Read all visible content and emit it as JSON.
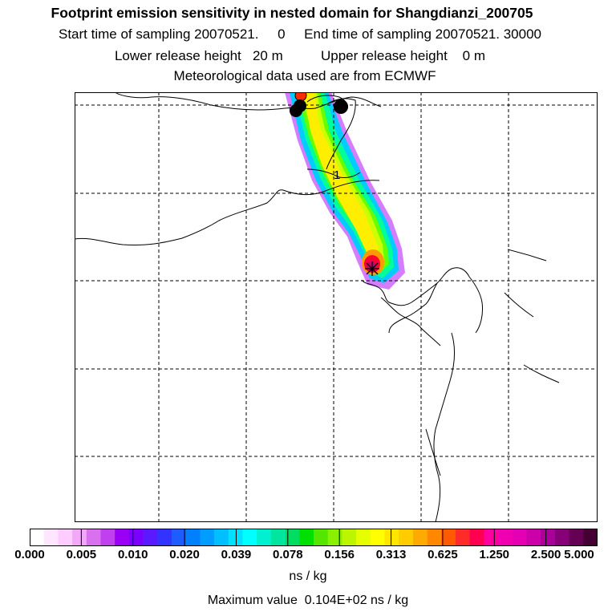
{
  "header": {
    "title": "Footprint emission sensitivity in nested domain for Shangdianzi_200705",
    "sampling_line": "Start time of sampling 20070521.     0     End time of sampling 20070521. 30000",
    "height_line": "Lower release height   20 m          Upper release height    0 m",
    "met_line": "Meteorological data used are from ECMWF"
  },
  "map": {
    "contour_label": "1",
    "plume_colors": [
      "#cc66ff",
      "#00ccff",
      "#00ff99",
      "#66ff00",
      "#ccff00",
      "#ffee00",
      "#ff9900",
      "#ff0033",
      "#cc0066"
    ]
  },
  "colorbar": {
    "colors": [
      "#ffffff",
      "#ffe6ff",
      "#ffccff",
      "#f0a8f7",
      "#d970ee",
      "#c040f0",
      "#9a00f5",
      "#7a00ff",
      "#5a1aff",
      "#3333ff",
      "#1f5cff",
      "#0080ff",
      "#009cff",
      "#00bfff",
      "#00e0ff",
      "#00ffff",
      "#00f0d0",
      "#00e6a0",
      "#00dd60",
      "#00e000",
      "#55e600",
      "#88f000",
      "#bbf500",
      "#e6ff00",
      "#ffff00",
      "#ffe600",
      "#ffcc00",
      "#ffaa00",
      "#ff8800",
      "#ff5a00",
      "#ff2a2a",
      "#ff0050",
      "#ff00a0",
      "#f000b0",
      "#e600b4",
      "#cc00a8",
      "#aa0099",
      "#880077",
      "#660055",
      "#440033"
    ],
    "ticks": [
      "0.000",
      "0.005",
      "0.010",
      "0.020",
      "0.039",
      "0.078",
      "0.156",
      "0.313",
      "0.625",
      "1.250",
      "2.500",
      "5.000"
    ],
    "units": "ns / kg"
  },
  "footer": {
    "max_value": "Maximum value  0.104E+02 ns / kg"
  }
}
